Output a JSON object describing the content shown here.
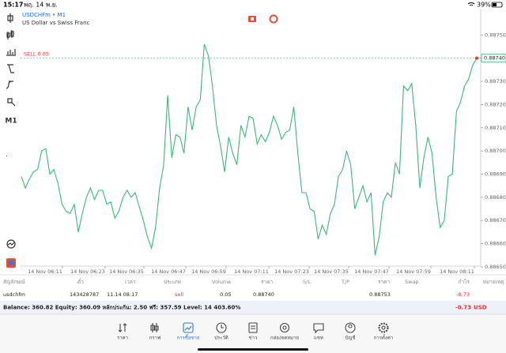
{
  "status_bar": {
    "time": "15:17",
    "date": "พฤ. 14 พ.ย.",
    "battery": "39%"
  },
  "chart_data": {
    "type": "line",
    "symbol": "USDCHFm • M1",
    "description": "US Dollar vs Swiss Franc",
    "color": "#3cb878",
    "time_labels": [
      "14 Nov 06:11",
      "14 Nov 06:23",
      "14 Nov 06:35",
      "14 Nov 06:47",
      "14 Nov 06:59",
      "14 Nov 07:11",
      "14 Nov 07:23",
      "14 Nov 07:35",
      "14 Nov 07:47",
      "14 Nov 07:59",
      "14 Nov 08:11"
    ],
    "values": [
      0.88689,
      0.88684,
      0.88688,
      0.88691,
      0.88692,
      0.887,
      0.88701,
      0.8869,
      0.88692,
      0.88686,
      0.88677,
      0.88674,
      0.88673,
      0.88677,
      0.88665,
      0.88673,
      0.8868,
      0.88684,
      0.88679,
      0.88683,
      0.88683,
      0.88677,
      0.88678,
      0.88671,
      0.88674,
      0.8868,
      0.88683,
      0.8868,
      0.88682,
      0.88676,
      0.8867,
      0.88663,
      0.88658,
      0.88667,
      0.88684,
      0.88694,
      0.88724,
      0.88697,
      0.88707,
      0.88706,
      0.88699,
      0.88719,
      0.88709,
      0.88719,
      0.88722,
      0.88746,
      0.88741,
      0.88728,
      0.88711,
      0.88702,
      0.88691,
      0.88706,
      0.88699,
      0.88694,
      0.88711,
      0.88706,
      0.88715,
      0.88714,
      0.88703,
      0.88707,
      0.88704,
      0.88708,
      0.88715,
      0.88711,
      0.88705,
      0.88708,
      0.88709,
      0.88719,
      0.88699,
      0.88682,
      0.88682,
      0.88675,
      0.88674,
      0.88662,
      0.88668,
      0.88664,
      0.88673,
      0.88677,
      0.88689,
      0.88692,
      0.887,
      0.88694,
      0.88675,
      0.8868,
      0.88685,
      0.88678,
      0.88682,
      0.88655,
      0.88663,
      0.88678,
      0.88682,
      0.8868,
      0.88695,
      0.8869,
      0.88728,
      0.88726,
      0.88729,
      0.88711,
      0.88684,
      0.88697,
      0.88706,
      0.88699,
      0.8868,
      0.88667,
      0.8867,
      0.88689,
      0.8869,
      0.88717,
      0.88721,
      0.88728,
      0.88731,
      0.88737,
      0.8874
    ],
    "ylim": [
      0.88651,
      0.88761
    ],
    "yticks": [
      {
        "value": 0.8875,
        "label": "0.88750"
      },
      {
        "value": 0.8874,
        "label": "0.88740"
      },
      {
        "value": 0.8873,
        "label": "0.88730"
      },
      {
        "value": 0.8872,
        "label": "0.88720"
      },
      {
        "value": 0.8871,
        "label": "0.88710"
      },
      {
        "value": 0.887,
        "label": "0.88700"
      },
      {
        "value": 0.8869,
        "label": "0.88690"
      },
      {
        "value": 0.8868,
        "label": "0.88680"
      },
      {
        "value": 0.8867,
        "label": "0.88670"
      },
      {
        "value": 0.8866,
        "label": "0.88660"
      },
      {
        "value": 0.8865,
        "label": "0.88650"
      }
    ],
    "order_line": {
      "label": "SELL 0.05",
      "value": 0.8874
    },
    "current_price": {
      "value": 0.8874,
      "label": "0.88740"
    }
  },
  "toolbar": {
    "timeframe": "M1"
  },
  "table": {
    "headers": [
      "สัญลักษณ์",
      "ตั๋ว",
      "เวลา",
      "ประเภท",
      "Volume",
      "ราคา",
      "S/L",
      "T/P",
      "ราคา",
      "Swap",
      "กำไร",
      "หมายเหตุ"
    ],
    "row": {
      "symbol": "usdchfm",
      "ticket": "143428787",
      "time": "11.14 08:17",
      "type": "sell",
      "volume": "0.05",
      "open_price": "0.88740",
      "price": "0.88753",
      "profit": "-0.73"
    }
  },
  "balance": {
    "text": "Balance: 360.82 Equity: 360.09 หลักประกัน: 2.50 ฟรี: 357.59 Level: 14 403.60%",
    "profit": "-0.73",
    "currency": "USD"
  },
  "nav": [
    "ราคา",
    "กราฟ",
    "การซื้อขาย",
    "ประวัติ",
    "ข่าว",
    "กล่องจดหมาย",
    "แชท",
    "บัญชี",
    "การตั้งค่า"
  ]
}
